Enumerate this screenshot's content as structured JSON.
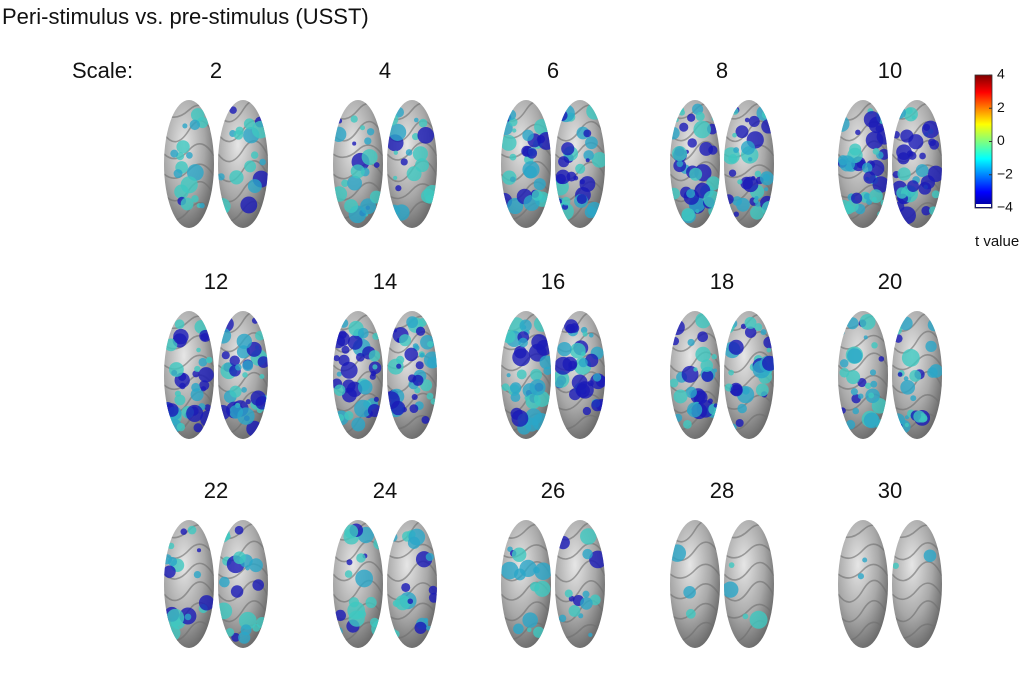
{
  "title": "Peri-stimulus vs. pre-stimulus (USST)",
  "scale_label": "Scale:",
  "panels": [
    {
      "label": "2"
    },
    {
      "label": "4"
    },
    {
      "label": "6"
    },
    {
      "label": "8"
    },
    {
      "label": "10"
    },
    {
      "label": "12"
    },
    {
      "label": "14"
    },
    {
      "label": "16"
    },
    {
      "label": "18"
    },
    {
      "label": "20"
    },
    {
      "label": "22"
    },
    {
      "label": "24"
    },
    {
      "label": "26"
    },
    {
      "label": "28"
    },
    {
      "label": "30"
    }
  ],
  "colorbar": {
    "lim": [
      -4,
      4
    ],
    "ticks": [
      4,
      2,
      0,
      {
        "value": -2,
        "label": "−2"
      },
      {
        "value": -4,
        "label": "−4"
      }
    ],
    "label": "t value"
  }
}
